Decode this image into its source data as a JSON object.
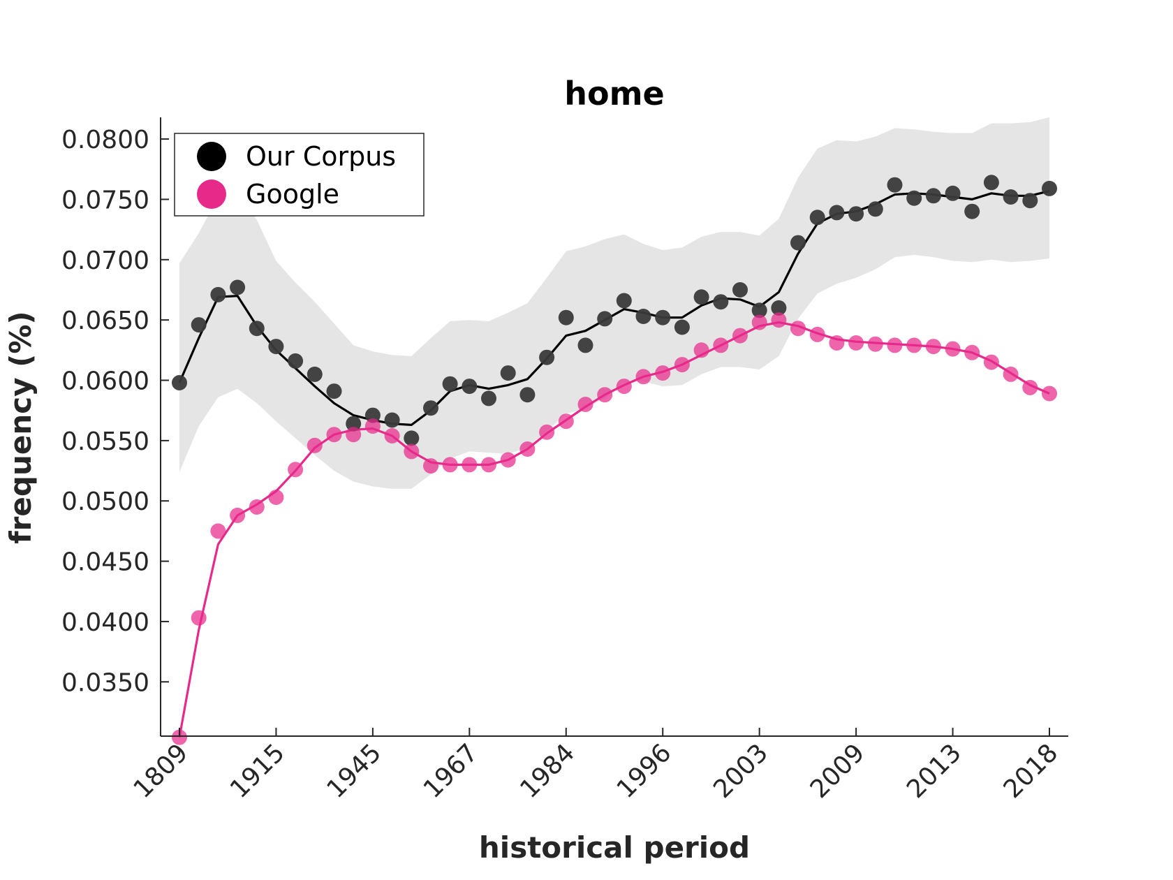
{
  "chart_data": {
    "type": "line",
    "title": "home",
    "xlabel": "historical period",
    "ylabel": "frequency (%)",
    "ylim": [
      0.0305,
      0.0818
    ],
    "yticks": [
      "0.0350",
      "0.0400",
      "0.0450",
      "0.0500",
      "0.0550",
      "0.0600",
      "0.0650",
      "0.0700",
      "0.0750",
      "0.0800"
    ],
    "xtick_labels": [
      "1809",
      "1915",
      "1945",
      "1967",
      "1984",
      "1996",
      "2003",
      "2009",
      "2013",
      "2018"
    ],
    "xtick_index": [
      0,
      5,
      10,
      15,
      20,
      25,
      30,
      35,
      40,
      45
    ],
    "n_points": 46,
    "legend_position": "top-left",
    "grid": false,
    "colors": {
      "corpus": "#000000",
      "corpus_points": "#3a3a3a",
      "google": "#e7298a",
      "band": "#e5e5e5"
    },
    "series": [
      {
        "name": "Our Corpus",
        "points": [
          0.0598,
          0.0646,
          0.0671,
          0.0677,
          0.0643,
          0.0628,
          0.0616,
          0.0605,
          0.0591,
          0.0564,
          0.0571,
          0.0567,
          0.0552,
          0.0577,
          0.0597,
          0.0595,
          0.0585,
          0.0606,
          0.0588,
          0.0619,
          0.0652,
          0.0629,
          0.0651,
          0.0666,
          0.0653,
          0.0652,
          0.0644,
          0.0669,
          0.0665,
          0.0675,
          0.0658,
          0.066,
          0.0714,
          0.0735,
          0.0739,
          0.0738,
          0.0742,
          0.0762,
          0.0751,
          0.0753,
          0.0755,
          0.074,
          0.0764,
          0.0752,
          0.0749,
          0.0759
        ],
        "line": [
          0.0598,
          0.0635,
          0.0669,
          0.067,
          0.0645,
          0.0625,
          0.061,
          0.0595,
          0.0581,
          0.0571,
          0.0567,
          0.0564,
          0.0563,
          0.0575,
          0.0591,
          0.0596,
          0.0593,
          0.0596,
          0.0601,
          0.0618,
          0.0637,
          0.0641,
          0.065,
          0.0659,
          0.0656,
          0.0652,
          0.0652,
          0.0662,
          0.0668,
          0.0667,
          0.0661,
          0.0673,
          0.0705,
          0.073,
          0.0738,
          0.074,
          0.0746,
          0.0754,
          0.0755,
          0.0754,
          0.0752,
          0.075,
          0.0755,
          0.0753,
          0.0753,
          0.0757
        ],
        "band_upper": [
          0.0697,
          0.0722,
          0.0752,
          0.0758,
          0.0733,
          0.0699,
          0.0681,
          0.0665,
          0.0647,
          0.0629,
          0.0624,
          0.0621,
          0.062,
          0.0635,
          0.0649,
          0.065,
          0.0649,
          0.0656,
          0.0664,
          0.0685,
          0.0707,
          0.0711,
          0.0717,
          0.0721,
          0.0713,
          0.0708,
          0.071,
          0.0719,
          0.0723,
          0.0723,
          0.072,
          0.0734,
          0.0768,
          0.0792,
          0.0799,
          0.0798,
          0.0802,
          0.0809,
          0.0808,
          0.0806,
          0.0805,
          0.0805,
          0.0813,
          0.0813,
          0.0814,
          0.0818
        ],
        "band_lower": [
          0.0524,
          0.0562,
          0.0586,
          0.0593,
          0.0581,
          0.0566,
          0.0552,
          0.0538,
          0.0525,
          0.0516,
          0.0512,
          0.051,
          0.051,
          0.0522,
          0.0535,
          0.0541,
          0.054,
          0.0539,
          0.0544,
          0.0558,
          0.0572,
          0.0577,
          0.0585,
          0.0598,
          0.0599,
          0.0595,
          0.0596,
          0.0605,
          0.0611,
          0.0611,
          0.0609,
          0.062,
          0.0651,
          0.0672,
          0.068,
          0.0685,
          0.0692,
          0.0702,
          0.0704,
          0.0702,
          0.0699,
          0.0698,
          0.07,
          0.0698,
          0.0699,
          0.0701
        ]
      },
      {
        "name": "Google",
        "points": [
          0.0304,
          0.0403,
          0.0475,
          0.0488,
          0.0495,
          0.0503,
          0.0526,
          0.0546,
          0.0555,
          0.0555,
          0.0562,
          0.0554,
          0.0541,
          0.0529,
          0.053,
          0.053,
          0.053,
          0.0534,
          0.0543,
          0.0557,
          0.0566,
          0.058,
          0.0588,
          0.0595,
          0.0603,
          0.0606,
          0.0613,
          0.0625,
          0.0629,
          0.0637,
          0.0648,
          0.065,
          0.0643,
          0.0638,
          0.0631,
          0.0631,
          0.063,
          0.0629,
          0.0629,
          0.0628,
          0.0626,
          0.0623,
          0.0615,
          0.0605,
          0.0594,
          0.0589
        ],
        "line": [
          0.0304,
          0.0393,
          0.0464,
          0.0488,
          0.0497,
          0.0508,
          0.0525,
          0.0544,
          0.0555,
          0.0559,
          0.056,
          0.0554,
          0.0541,
          0.0532,
          0.053,
          0.053,
          0.053,
          0.0534,
          0.0543,
          0.0556,
          0.0567,
          0.0578,
          0.0588,
          0.0596,
          0.0603,
          0.0607,
          0.0613,
          0.0621,
          0.0629,
          0.0637,
          0.0645,
          0.0648,
          0.0645,
          0.0639,
          0.0634,
          0.0632,
          0.0631,
          0.063,
          0.0629,
          0.0628,
          0.0626,
          0.0623,
          0.0616,
          0.0606,
          0.0596,
          0.0589
        ]
      }
    ]
  }
}
